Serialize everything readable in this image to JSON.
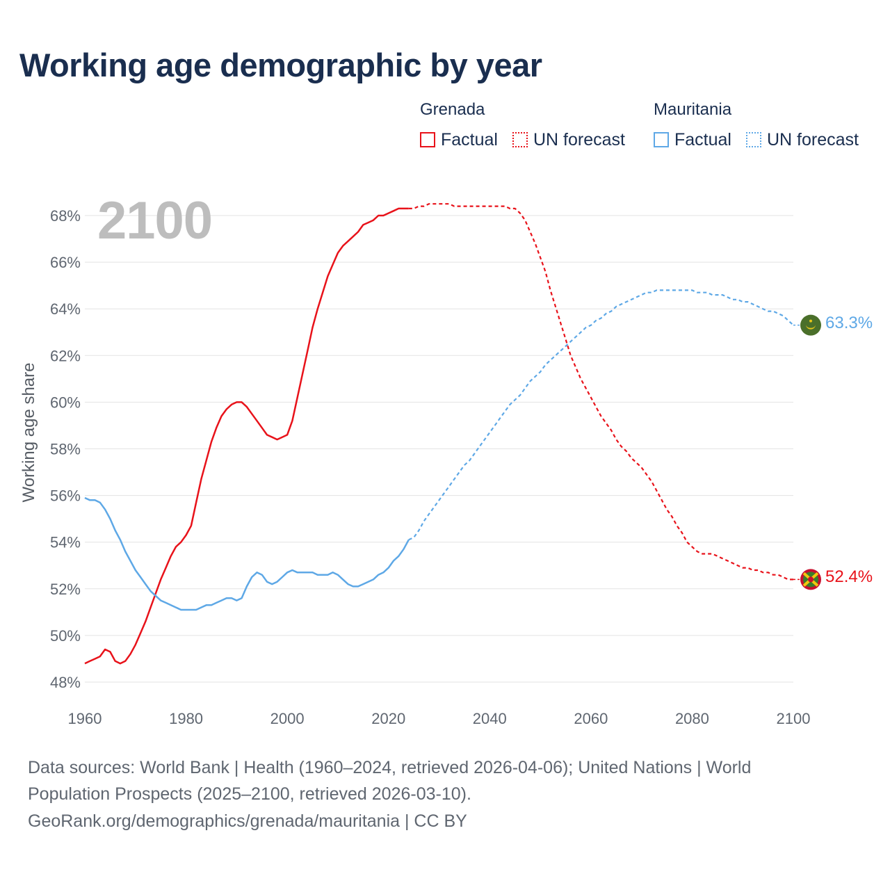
{
  "title": "Working age demographic by year",
  "legend": {
    "groups": [
      {
        "name": "Grenada",
        "color": "#e8121a",
        "factual_label": "Factual",
        "forecast_label": "UN forecast"
      },
      {
        "name": "Mauritania",
        "color": "#5ea8e6",
        "factual_label": "Factual",
        "forecast_label": "UN forecast"
      }
    ]
  },
  "year_watermark": "2100",
  "y_axis_label": "Working age share",
  "end_labels": {
    "mauritania": "63.3%",
    "grenada": "52.4%"
  },
  "flag_icons": {
    "mauritania": "mauritania-flag-icon",
    "grenada": "grenada-flag-icon"
  },
  "footer": {
    "line1": "Data sources: World Bank | Health (1960–2024, retrieved 2026-04-06); United Nations | World",
    "line2": "Population Prospects (2025–2100, retrieved 2026-03-10).",
    "line3": "GeoRank.org/demographics/grenada/mauritania | CC BY"
  },
  "chart_data": {
    "type": "line",
    "title": "Working age demographic by year",
    "xlabel": "",
    "ylabel": "Working age share",
    "xlim": [
      1960,
      2100
    ],
    "ylim": [
      47.5,
      69.2
    ],
    "x_ticks": [
      1960,
      1980,
      2000,
      2020,
      2040,
      2060,
      2080,
      2100
    ],
    "y_ticks": [
      48,
      50,
      52,
      54,
      56,
      58,
      60,
      62,
      64,
      66,
      68
    ],
    "y_tick_labels": [
      "48%",
      "50%",
      "52%",
      "54%",
      "56%",
      "58%",
      "60%",
      "62%",
      "64%",
      "66%",
      "68%"
    ],
    "grid": true,
    "factual_range": [
      1960,
      2024
    ],
    "forecast_range": [
      2025,
      2100
    ],
    "series": [
      {
        "name": "Grenada",
        "color": "#e8121a",
        "x": [
          1960,
          1961,
          1962,
          1963,
          1964,
          1965,
          1966,
          1967,
          1968,
          1969,
          1970,
          1971,
          1972,
          1973,
          1974,
          1975,
          1976,
          1977,
          1978,
          1979,
          1980,
          1981,
          1982,
          1983,
          1984,
          1985,
          1986,
          1987,
          1988,
          1989,
          1990,
          1991,
          1992,
          1993,
          1994,
          1995,
          1996,
          1997,
          1998,
          1999,
          2000,
          2001,
          2002,
          2003,
          2004,
          2005,
          2006,
          2007,
          2008,
          2009,
          2010,
          2011,
          2012,
          2013,
          2014,
          2015,
          2016,
          2017,
          2018,
          2019,
          2020,
          2021,
          2022,
          2023,
          2024,
          2025,
          2026,
          2027,
          2028,
          2029,
          2030,
          2031,
          2032,
          2033,
          2034,
          2035,
          2036,
          2037,
          2038,
          2039,
          2040,
          2041,
          2042,
          2043,
          2044,
          2045,
          2046,
          2047,
          2048,
          2049,
          2050,
          2051,
          2052,
          2053,
          2054,
          2055,
          2056,
          2057,
          2058,
          2059,
          2060,
          2061,
          2062,
          2063,
          2064,
          2065,
          2066,
          2067,
          2068,
          2069,
          2070,
          2071,
          2072,
          2073,
          2074,
          2075,
          2076,
          2077,
          2078,
          2079,
          2080,
          2081,
          2082,
          2083,
          2084,
          2085,
          2086,
          2087,
          2088,
          2089,
          2090,
          2091,
          2092,
          2093,
          2094,
          2095,
          2096,
          2097,
          2098,
          2099,
          2100
        ],
        "y": [
          48.8,
          48.9,
          49.0,
          49.1,
          49.4,
          49.3,
          48.9,
          48.8,
          48.9,
          49.2,
          49.6,
          50.1,
          50.6,
          51.2,
          51.8,
          52.4,
          52.9,
          53.4,
          53.8,
          54.0,
          54.3,
          54.7,
          55.7,
          56.7,
          57.5,
          58.3,
          58.9,
          59.4,
          59.7,
          59.9,
          60.0,
          60.0,
          59.8,
          59.5,
          59.2,
          58.9,
          58.6,
          58.5,
          58.4,
          58.5,
          58.6,
          59.2,
          60.2,
          61.2,
          62.2,
          63.2,
          64.0,
          64.7,
          65.4,
          65.9,
          66.4,
          66.7,
          66.9,
          67.1,
          67.3,
          67.6,
          67.7,
          67.8,
          68.0,
          68.0,
          68.1,
          68.2,
          68.3,
          68.3,
          68.3,
          68.3,
          68.4,
          68.4,
          68.5,
          68.5,
          68.5,
          68.5,
          68.5,
          68.4,
          68.4,
          68.4,
          68.4,
          68.4,
          68.4,
          68.4,
          68.4,
          68.4,
          68.4,
          68.4,
          68.3,
          68.3,
          68.1,
          67.8,
          67.3,
          66.8,
          66.2,
          65.6,
          64.8,
          64.1,
          63.4,
          62.7,
          62.0,
          61.5,
          61.0,
          60.6,
          60.2,
          59.8,
          59.4,
          59.1,
          58.8,
          58.4,
          58.1,
          57.9,
          57.6,
          57.4,
          57.2,
          56.9,
          56.6,
          56.2,
          55.8,
          55.4,
          55.1,
          54.7,
          54.4,
          54.0,
          53.8,
          53.6,
          53.5,
          53.5,
          53.5,
          53.4,
          53.3,
          53.2,
          53.1,
          53.0,
          52.9,
          52.9,
          52.8,
          52.8,
          52.7,
          52.7,
          52.6,
          52.6,
          52.5,
          52.4,
          52.4
        ]
      },
      {
        "name": "Mauritania",
        "color": "#5ea8e6",
        "x": [
          1960,
          1961,
          1962,
          1963,
          1964,
          1965,
          1966,
          1967,
          1968,
          1969,
          1970,
          1971,
          1972,
          1973,
          1974,
          1975,
          1976,
          1977,
          1978,
          1979,
          1980,
          1981,
          1982,
          1983,
          1984,
          1985,
          1986,
          1987,
          1988,
          1989,
          1990,
          1991,
          1992,
          1993,
          1994,
          1995,
          1996,
          1997,
          1998,
          1999,
          2000,
          2001,
          2002,
          2003,
          2004,
          2005,
          2006,
          2007,
          2008,
          2009,
          2010,
          2011,
          2012,
          2013,
          2014,
          2015,
          2016,
          2017,
          2018,
          2019,
          2020,
          2021,
          2022,
          2023,
          2024,
          2025,
          2026,
          2027,
          2028,
          2029,
          2030,
          2031,
          2032,
          2033,
          2034,
          2035,
          2036,
          2037,
          2038,
          2039,
          2040,
          2041,
          2042,
          2043,
          2044,
          2045,
          2046,
          2047,
          2048,
          2049,
          2050,
          2051,
          2052,
          2053,
          2054,
          2055,
          2056,
          2057,
          2058,
          2059,
          2060,
          2061,
          2062,
          2063,
          2064,
          2065,
          2066,
          2067,
          2068,
          2069,
          2070,
          2071,
          2072,
          2073,
          2074,
          2075,
          2076,
          2077,
          2078,
          2079,
          2080,
          2081,
          2082,
          2083,
          2084,
          2085,
          2086,
          2087,
          2088,
          2089,
          2090,
          2091,
          2092,
          2093,
          2094,
          2095,
          2096,
          2097,
          2098,
          2099,
          2100
        ],
        "y": [
          55.9,
          55.8,
          55.8,
          55.7,
          55.4,
          55.0,
          54.5,
          54.1,
          53.6,
          53.2,
          52.8,
          52.5,
          52.2,
          51.9,
          51.7,
          51.5,
          51.4,
          51.3,
          51.2,
          51.1,
          51.1,
          51.1,
          51.1,
          51.2,
          51.3,
          51.3,
          51.4,
          51.5,
          51.6,
          51.6,
          51.5,
          51.6,
          52.1,
          52.5,
          52.7,
          52.6,
          52.3,
          52.2,
          52.3,
          52.5,
          52.7,
          52.8,
          52.7,
          52.7,
          52.7,
          52.7,
          52.6,
          52.6,
          52.6,
          52.7,
          52.6,
          52.4,
          52.2,
          52.1,
          52.1,
          52.2,
          52.3,
          52.4,
          52.6,
          52.7,
          52.9,
          53.2,
          53.4,
          53.7,
          54.1,
          54.2,
          54.5,
          54.9,
          55.2,
          55.5,
          55.8,
          56.1,
          56.4,
          56.7,
          57.0,
          57.3,
          57.5,
          57.8,
          58.1,
          58.4,
          58.7,
          59.0,
          59.3,
          59.6,
          59.9,
          60.1,
          60.3,
          60.6,
          60.9,
          61.1,
          61.3,
          61.6,
          61.8,
          62.0,
          62.2,
          62.4,
          62.6,
          62.8,
          63.0,
          63.2,
          63.3,
          63.5,
          63.6,
          63.8,
          63.9,
          64.1,
          64.2,
          64.3,
          64.4,
          64.5,
          64.6,
          64.7,
          64.7,
          64.8,
          64.8,
          64.8,
          64.8,
          64.8,
          64.8,
          64.8,
          64.8,
          64.7,
          64.7,
          64.7,
          64.6,
          64.6,
          64.6,
          64.5,
          64.4,
          64.4,
          64.3,
          64.3,
          64.2,
          64.1,
          64.0,
          63.9,
          63.9,
          63.8,
          63.7,
          63.5,
          63.3
        ]
      }
    ]
  }
}
